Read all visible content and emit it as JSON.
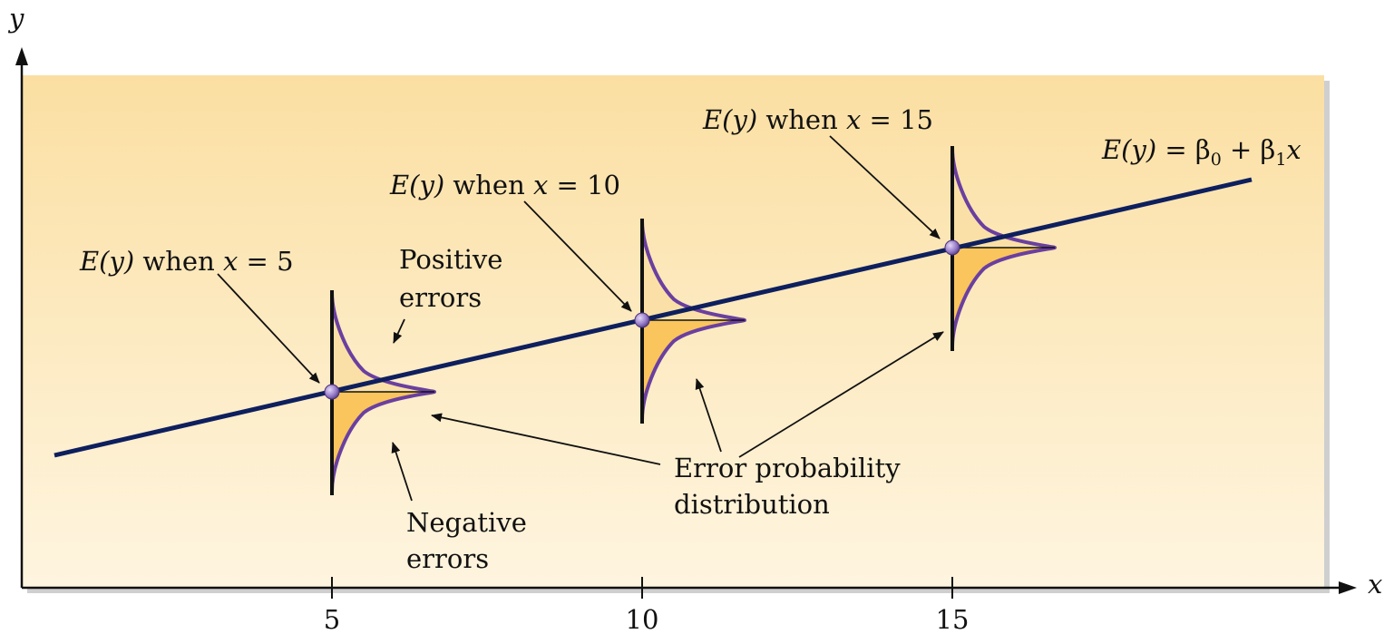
{
  "axes": {
    "x_label": "x",
    "y_label": "y",
    "x_ticks": [
      "5",
      "10",
      "15"
    ]
  },
  "line_equation": {
    "ey": "E(y)",
    "eq": " = β",
    "sub0": "0",
    "plus": " + β",
    "sub1": "1",
    "x": "x"
  },
  "point_labels": [
    {
      "ey": "E(y)",
      "when": " when ",
      "x": "x",
      "eq": " = 5"
    },
    {
      "ey": "E(y)",
      "when": " when ",
      "x": "x",
      "eq": " = 10"
    },
    {
      "ey": "E(y)",
      "when": " when ",
      "x": "x",
      "eq": " = 15"
    }
  ],
  "annotations": {
    "positive_line1": "Positive",
    "positive_line2": "errors",
    "negative_line1": "Negative",
    "negative_line2": "errors",
    "error_line1": "Error probability",
    "error_line2": "distribution"
  },
  "colors": {
    "panel_top": "#FBDFA2",
    "panel_bottom": "#FEF5E0",
    "regression_line": "#0E1F5E",
    "curve": "#6A3FA0",
    "fill_upper": "#FAE0A6",
    "fill_lower": "#F9C55C",
    "point": "#9A7FCB"
  }
}
